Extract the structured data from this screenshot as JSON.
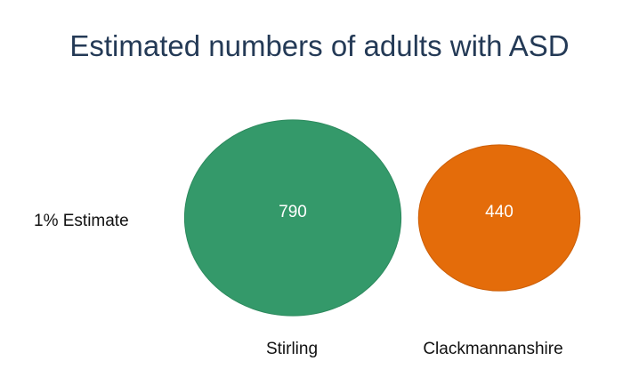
{
  "chart_data": {
    "type": "bubble",
    "title": "Estimated numbers of adults with ASD",
    "row_label": "1% Estimate",
    "categories": [
      "Stirling",
      "Clackmannanshire"
    ],
    "values": [
      790,
      440
    ],
    "value_labels": [
      "790",
      "440"
    ],
    "colors": [
      "#34996a",
      "#e46c0a"
    ],
    "legend": "none",
    "grid": false
  }
}
